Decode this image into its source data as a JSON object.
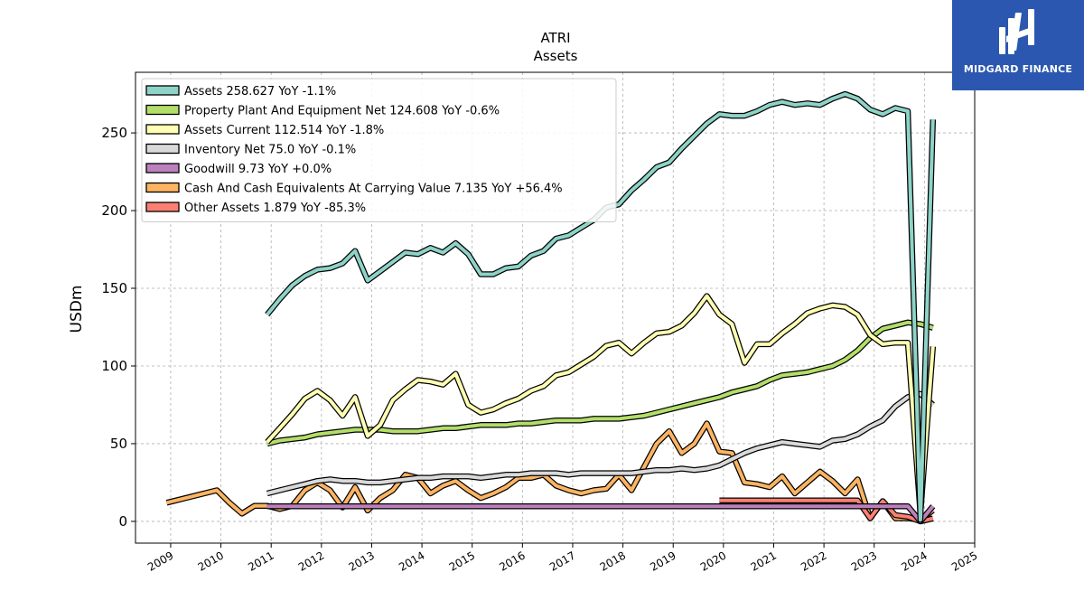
{
  "chart_data": {
    "type": "line",
    "title": "ATRI",
    "subtitle": "Assets",
    "ylabel": "USDm",
    "xlabel": "",
    "xlim": [
      2008.3,
      2025.0
    ],
    "ylim": [
      -14,
      289
    ],
    "x_ticks": [
      "2009",
      "2010",
      "2011",
      "2012",
      "2013",
      "2014",
      "2015",
      "2016",
      "2017",
      "2018",
      "2019",
      "2020",
      "2021",
      "2022",
      "2023",
      "2024",
      "2025"
    ],
    "y_ticks": [
      "0",
      "50",
      "100",
      "150",
      "200",
      "250"
    ],
    "grid": true,
    "legend_position": "top-left",
    "series": [
      {
        "name": "Assets",
        "legend": "Assets  258.627 YoY -1.1%",
        "color": "#8dd3c7",
        "x": [
          2010.92,
          2011.17,
          2011.42,
          2011.67,
          2011.92,
          2012.17,
          2012.42,
          2012.67,
          2012.92,
          2013.17,
          2013.42,
          2013.67,
          2013.92,
          2014.17,
          2014.42,
          2014.67,
          2014.92,
          2015.17,
          2015.42,
          2015.67,
          2015.92,
          2016.17,
          2016.42,
          2016.67,
          2016.92,
          2017.17,
          2017.42,
          2017.67,
          2017.92,
          2018.17,
          2018.42,
          2018.67,
          2018.92,
          2019.17,
          2019.42,
          2019.67,
          2019.92,
          2020.17,
          2020.42,
          2020.67,
          2020.92,
          2021.17,
          2021.42,
          2021.67,
          2021.92,
          2022.17,
          2022.42,
          2022.67,
          2022.92,
          2023.17,
          2023.42,
          2023.67,
          2023.92,
          2024.17
        ],
        "values": [
          133,
          143,
          152,
          158,
          162,
          163,
          166,
          174,
          155,
          161,
          167,
          173,
          172,
          176,
          173,
          179,
          172,
          159,
          159,
          163,
          164,
          171,
          174,
          182,
          184,
          189,
          194,
          202,
          204,
          213,
          220,
          228,
          231,
          240,
          248,
          256,
          262,
          261,
          261,
          264,
          268,
          270,
          268,
          269,
          268,
          272,
          275,
          272,
          265,
          262,
          266,
          264,
          1,
          258.6
        ]
      },
      {
        "name": "Property Plant And Equipment Net",
        "legend": "Property Plant And Equipment Net  124.608 YoY -0.6%",
        "color": "#b3de69",
        "x": [
          2010.92,
          2011.17,
          2011.42,
          2011.67,
          2011.92,
          2012.17,
          2012.42,
          2012.67,
          2012.92,
          2013.17,
          2013.42,
          2013.67,
          2013.92,
          2014.17,
          2014.42,
          2014.67,
          2014.92,
          2015.17,
          2015.42,
          2015.67,
          2015.92,
          2016.17,
          2016.42,
          2016.67,
          2016.92,
          2017.17,
          2017.42,
          2017.67,
          2017.92,
          2018.17,
          2018.42,
          2018.67,
          2018.92,
          2019.17,
          2019.42,
          2019.67,
          2019.92,
          2020.17,
          2020.42,
          2020.67,
          2020.92,
          2021.17,
          2021.42,
          2021.67,
          2021.92,
          2022.17,
          2022.42,
          2022.67,
          2022.92,
          2023.17,
          2023.42,
          2023.67,
          2023.92,
          2024.17
        ],
        "values": [
          50,
          52,
          53,
          54,
          56,
          57,
          58,
          59,
          59,
          59,
          58,
          58,
          58,
          59,
          60,
          60,
          61,
          62,
          62,
          62,
          63,
          63,
          64,
          65,
          65,
          65,
          66,
          66,
          66,
          67,
          68,
          70,
          72,
          74,
          76,
          78,
          80,
          83,
          85,
          87,
          91,
          94,
          95,
          96,
          98,
          100,
          104,
          110,
          118,
          124,
          126,
          128,
          127,
          124.6
        ]
      },
      {
        "name": "Assets Current",
        "legend": "Assets Current  112.514 YoY -1.8%",
        "color": "#ffffb3",
        "x": [
          2010.92,
          2011.17,
          2011.42,
          2011.67,
          2011.92,
          2012.17,
          2012.42,
          2012.67,
          2012.92,
          2013.17,
          2013.42,
          2013.67,
          2013.92,
          2014.17,
          2014.42,
          2014.67,
          2014.92,
          2015.17,
          2015.42,
          2015.67,
          2015.92,
          2016.17,
          2016.42,
          2016.67,
          2016.92,
          2017.17,
          2017.42,
          2017.67,
          2017.92,
          2018.17,
          2018.42,
          2018.67,
          2018.92,
          2019.17,
          2019.42,
          2019.67,
          2019.92,
          2020.17,
          2020.42,
          2020.67,
          2020.92,
          2021.17,
          2021.42,
          2021.67,
          2021.92,
          2022.17,
          2022.42,
          2022.67,
          2022.92,
          2023.17,
          2023.42,
          2023.67,
          2023.92,
          2024.17
        ],
        "values": [
          51,
          60,
          69,
          79,
          84,
          78,
          68,
          80,
          55,
          62,
          78,
          85,
          91,
          90,
          88,
          95,
          75,
          70,
          72,
          76,
          79,
          84,
          87,
          94,
          96,
          101,
          106,
          113,
          115,
          108,
          115,
          121,
          122,
          126,
          134,
          145,
          133,
          127,
          102,
          114,
          114,
          121,
          127,
          134,
          137,
          139,
          138,
          133,
          120,
          114,
          115,
          115,
          5,
          112.5
        ]
      },
      {
        "name": "Inventory Net",
        "legend": "Inventory Net  75.0 YoY -0.1%",
        "color": "#d9d9d9",
        "x": [
          2010.92,
          2011.17,
          2011.42,
          2011.67,
          2011.92,
          2012.17,
          2012.42,
          2012.67,
          2012.92,
          2013.17,
          2013.42,
          2013.67,
          2013.92,
          2014.17,
          2014.42,
          2014.67,
          2014.92,
          2015.17,
          2015.42,
          2015.67,
          2015.92,
          2016.17,
          2016.42,
          2016.67,
          2016.92,
          2017.17,
          2017.42,
          2017.67,
          2017.92,
          2018.17,
          2018.42,
          2018.67,
          2018.92,
          2019.17,
          2019.42,
          2019.67,
          2019.92,
          2020.17,
          2020.42,
          2020.67,
          2020.92,
          2021.17,
          2021.42,
          2021.67,
          2021.92,
          2022.17,
          2022.42,
          2022.67,
          2022.92,
          2023.17,
          2023.42,
          2023.67,
          2023.92,
          2024.17
        ],
        "values": [
          18,
          20,
          22,
          24,
          26,
          27,
          26,
          26,
          25,
          25,
          26,
          27,
          28,
          28,
          29,
          29,
          29,
          28,
          29,
          30,
          30,
          31,
          31,
          31,
          30,
          31,
          31,
          31,
          31,
          31,
          32,
          33,
          33,
          34,
          33,
          34,
          36,
          40,
          44,
          47,
          49,
          51,
          50,
          49,
          48,
          52,
          53,
          56,
          61,
          65,
          74,
          80,
          82,
          75.0
        ]
      },
      {
        "name": "Goodwill",
        "legend": "Goodwill  9.73 YoY +0.0%",
        "color": "#bc80bd",
        "x": [
          2010.92,
          2011.42,
          2011.92,
          2012.42,
          2012.92,
          2013.42,
          2013.92,
          2014.42,
          2014.92,
          2015.42,
          2015.92,
          2016.42,
          2016.92,
          2017.42,
          2017.92,
          2018.42,
          2018.92,
          2019.42,
          2019.92,
          2020.42,
          2020.92,
          2021.42,
          2021.92,
          2022.42,
          2022.92,
          2023.42,
          2023.67,
          2023.92,
          2024.17
        ],
        "values": [
          9.7,
          9.7,
          9.7,
          9.7,
          9.7,
          9.7,
          9.7,
          9.7,
          9.7,
          9.7,
          9.7,
          9.7,
          9.7,
          9.7,
          9.7,
          9.7,
          9.7,
          9.7,
          9.7,
          9.7,
          9.7,
          9.7,
          9.7,
          9.7,
          9.7,
          9.7,
          9.7,
          0,
          9.73
        ]
      },
      {
        "name": "Cash And Cash Equivalents At Carrying Value",
        "legend": "Cash And Cash Equivalents At Carrying Value  7.135 YoY +56.4%",
        "color": "#fdb462",
        "x": [
          2008.92,
          2009.42,
          2009.92,
          2010.17,
          2010.42,
          2010.67,
          2010.92,
          2011.17,
          2011.42,
          2011.67,
          2011.92,
          2012.17,
          2012.42,
          2012.67,
          2012.92,
          2013.17,
          2013.42,
          2013.67,
          2013.92,
          2014.17,
          2014.42,
          2014.67,
          2014.92,
          2015.17,
          2015.42,
          2015.67,
          2015.92,
          2016.17,
          2016.42,
          2016.67,
          2016.92,
          2017.17,
          2017.42,
          2017.67,
          2017.92,
          2018.17,
          2018.42,
          2018.67,
          2018.92,
          2019.17,
          2019.42,
          2019.67,
          2019.92,
          2020.17,
          2020.42,
          2020.67,
          2020.92,
          2021.17,
          2021.42,
          2021.67,
          2021.92,
          2022.17,
          2022.42,
          2022.67,
          2022.92,
          2023.17,
          2023.42,
          2023.67,
          2023.92,
          2024.17
        ],
        "values": [
          12,
          16,
          20,
          12,
          5,
          10,
          10,
          8,
          10,
          20,
          25,
          20,
          9,
          22,
          7,
          15,
          20,
          30,
          28,
          18,
          23,
          26,
          20,
          15,
          18,
          22,
          28,
          28,
          30,
          23,
          20,
          18,
          20,
          21,
          30,
          20,
          35,
          50,
          58,
          44,
          50,
          63,
          45,
          44,
          25,
          24,
          22,
          29,
          18,
          25,
          32,
          26,
          18,
          27,
          2,
          13,
          2,
          2,
          1,
          7.1
        ]
      },
      {
        "name": "Other Assets",
        "legend": "Other Assets  1.879 YoY -85.3%",
        "color": "#fb8072",
        "x": [
          2019.92,
          2020.17,
          2020.42,
          2020.67,
          2020.92,
          2021.17,
          2021.42,
          2021.67,
          2021.92,
          2022.17,
          2022.42,
          2022.67,
          2022.92,
          2023.17,
          2023.42,
          2023.67,
          2023.92,
          2024.17
        ],
        "values": [
          13.5,
          13.5,
          13.5,
          13.5,
          13.5,
          13.5,
          13.5,
          13.5,
          13.5,
          13.5,
          13.5,
          13.5,
          2,
          13,
          4,
          3,
          0,
          1.9
        ]
      }
    ]
  },
  "logo": {
    "name": "MIDGARD FINANCE",
    "background": "#2b57b0"
  }
}
